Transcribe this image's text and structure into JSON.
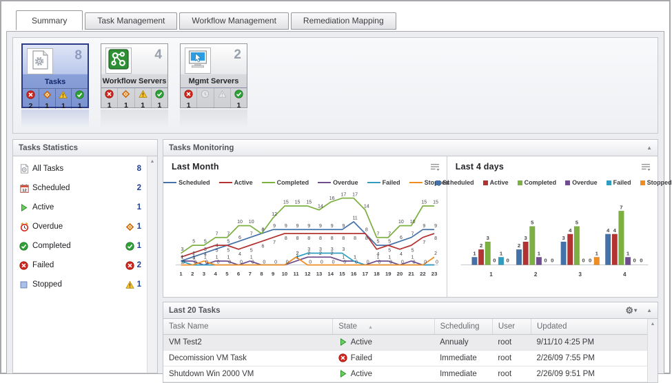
{
  "window": {
    "tabs": [
      {
        "label": "Summary",
        "active": true
      },
      {
        "label": "Task Management",
        "active": false
      },
      {
        "label": "Workflow Management",
        "active": false
      },
      {
        "label": "Remediation Mapping",
        "active": false
      }
    ]
  },
  "cards": {
    "tasks": {
      "title": "Tasks",
      "count": "8",
      "failed": "2",
      "overdue": "1",
      "warning": "1",
      "completed": "1"
    },
    "workflow": {
      "title": "Workflow Servers",
      "count": "4",
      "failed": "1",
      "overdue": "1",
      "warning": "1",
      "completed": "1"
    },
    "mgmt": {
      "title": "Mgmt Servers",
      "count": "2",
      "failed": "1",
      "overdue": "",
      "warning": "",
      "completed": "1"
    }
  },
  "stats_panel": {
    "title": "Tasks Statistics",
    "items": [
      {
        "label": "All Tasks",
        "icon": "tasks-doc",
        "badge": null,
        "value": "8"
      },
      {
        "label": "Scheduled",
        "icon": "calendar",
        "badge": null,
        "value": "2"
      },
      {
        "label": "Active",
        "icon": "play",
        "badge": null,
        "value": "1"
      },
      {
        "label": "Overdue",
        "icon": "alarm",
        "badge": "overdue",
        "value": "1"
      },
      {
        "label": "Completed",
        "icon": "completed",
        "badge": "completed",
        "value": "1"
      },
      {
        "label": "Failed",
        "icon": "failed",
        "badge": "failed",
        "value": "2"
      },
      {
        "label": "Stopped",
        "icon": "stopped",
        "badge": "warning",
        "value": "1"
      }
    ]
  },
  "monitoring_panel": {
    "title": "Tasks Monitoring"
  },
  "chart_data": [
    {
      "type": "line",
      "title": "Last Month",
      "x": [
        1,
        2,
        3,
        4,
        5,
        6,
        7,
        8,
        9,
        10,
        11,
        12,
        13,
        14,
        15,
        16,
        17,
        18,
        19,
        20,
        21,
        22,
        23
      ],
      "ylim": [
        0,
        18
      ],
      "legend_position": "top",
      "grid": false,
      "series": [
        {
          "name": "Scheduled",
          "color": "#4472a8",
          "values": [
            1,
            2,
            3,
            4,
            5,
            6,
            7,
            8,
            9,
            9,
            9,
            9,
            9,
            9,
            9,
            11,
            8,
            5,
            5,
            6,
            7,
            9,
            9
          ]
        },
        {
          "name": "Active",
          "color": "#b23331",
          "values": [
            2,
            3,
            4,
            5,
            5,
            4,
            5,
            6,
            7,
            8,
            8,
            8,
            8,
            8,
            8,
            8,
            8,
            4,
            5,
            4,
            5,
            7,
            8
          ]
        },
        {
          "name": "Completed",
          "color": "#7cb041",
          "values": [
            3,
            5,
            5,
            7,
            7,
            10,
            10,
            8,
            12,
            15,
            15,
            15,
            14,
            16,
            17,
            17,
            14,
            7,
            7,
            10,
            10,
            15,
            15
          ]
        },
        {
          "name": "Overdue",
          "color": "#6f4d8f",
          "values": [
            1,
            1,
            0,
            1,
            1,
            0,
            1,
            0,
            0,
            0,
            1,
            2,
            2,
            2,
            1,
            1,
            0,
            1,
            1,
            0,
            1,
            0,
            0
          ]
        },
        {
          "name": "Failed",
          "color": "#2e9dc1",
          "values": [
            1,
            0,
            0,
            0,
            0,
            0,
            0,
            0,
            0,
            0,
            2,
            3,
            3,
            3,
            3,
            1,
            0,
            0,
            0,
            0,
            0,
            0,
            0
          ]
        },
        {
          "name": "Stopped",
          "color": "#ef8d22",
          "values": [
            0,
            0,
            1,
            0,
            0,
            0,
            0,
            0,
            0,
            0,
            2,
            0,
            0,
            0,
            0,
            0,
            0,
            0,
            0,
            0,
            0,
            0,
            2
          ]
        }
      ]
    },
    {
      "type": "bar",
      "title": "Last 4 days",
      "categories": [
        "1",
        "2",
        "3",
        "4"
      ],
      "ylim": [
        0,
        8
      ],
      "legend_position": "top",
      "grid": false,
      "series": [
        {
          "name": "Scheduled",
          "color": "#4472a8",
          "values": [
            1,
            2,
            3,
            4
          ]
        },
        {
          "name": "Active",
          "color": "#b23331",
          "values": [
            2,
            3,
            4,
            4
          ]
        },
        {
          "name": "Completed",
          "color": "#7cb041",
          "values": [
            3,
            5,
            5,
            7
          ]
        },
        {
          "name": "Overdue",
          "color": "#6f4d8f",
          "values": [
            0,
            1,
            0,
            1
          ]
        },
        {
          "name": "Failed",
          "color": "#2e9dc1",
          "values": [
            1,
            0,
            0,
            0
          ]
        },
        {
          "name": "Stopped",
          "color": "#ef8d22",
          "values": [
            0,
            0,
            1,
            0
          ]
        }
      ]
    }
  ],
  "table_panel": {
    "title": "Last 20 Tasks",
    "columns": [
      "Task Name",
      "State",
      "Scheduling",
      "User",
      "Updated"
    ],
    "sorted_column": "State",
    "rows": [
      {
        "name": "VM Test2",
        "state": "Active",
        "state_icon": "play",
        "scheduling": "Annualy",
        "user": "root",
        "updated": "9/11/10 4:25 PM",
        "selected": true
      },
      {
        "name": "Decomission VM Task",
        "state": "Failed",
        "state_icon": "failed",
        "scheduling": "Immediate",
        "user": "root",
        "updated": "2/26/09 7:55 PM",
        "selected": false
      },
      {
        "name": "Shutdown Win 2000 VM",
        "state": "Active",
        "state_icon": "play",
        "scheduling": "Immediate",
        "user": "root",
        "updated": "2/26/09 9:51 PM",
        "selected": false
      }
    ]
  }
}
